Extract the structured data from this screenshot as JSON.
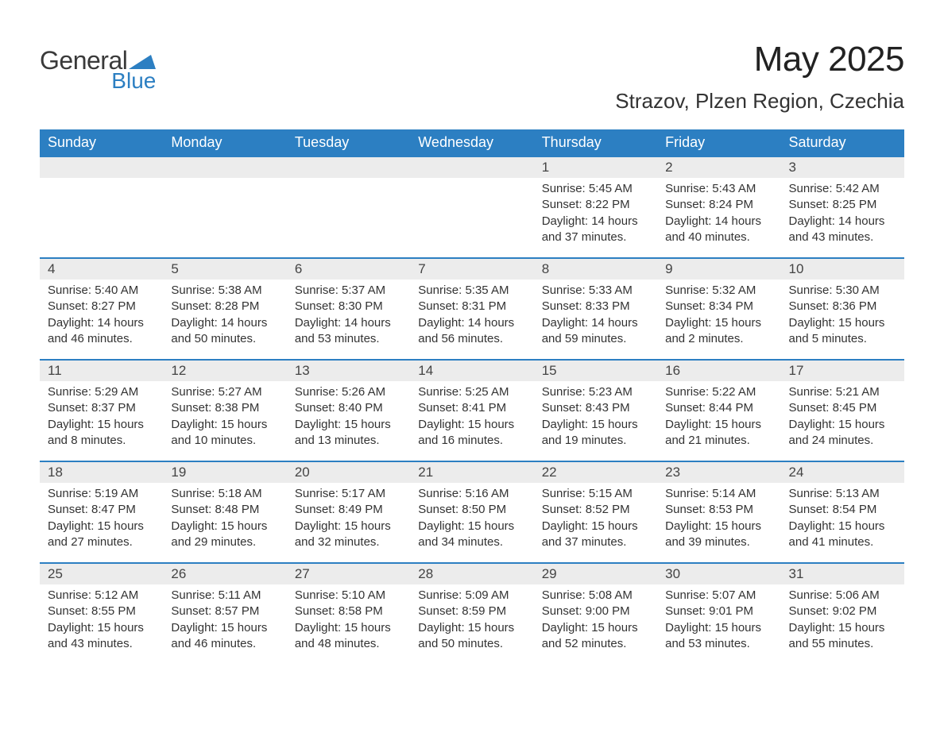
{
  "brand": {
    "word1": "General",
    "word2": "Blue",
    "flag_color": "#2c7fc2",
    "text_color": "#3a3a3a"
  },
  "header": {
    "title": "May 2025",
    "location": "Strazov, Plzen Region, Czechia"
  },
  "calendar": {
    "type": "table",
    "columns": [
      "Sunday",
      "Monday",
      "Tuesday",
      "Wednesday",
      "Thursday",
      "Friday",
      "Saturday"
    ],
    "header_bg": "#2c7fc2",
    "header_text_color": "#ffffff",
    "daybar_bg": "#ececec",
    "daybar_border_color": "#2c7fc2",
    "body_text_color": "#333333",
    "font_size_header": 18,
    "font_size_daynum": 17,
    "font_size_body": 15,
    "leading_blanks": 4,
    "days": [
      {
        "n": "1",
        "sunrise": "Sunrise: 5:45 AM",
        "sunset": "Sunset: 8:22 PM",
        "daylight": "Daylight: 14 hours and 37 minutes."
      },
      {
        "n": "2",
        "sunrise": "Sunrise: 5:43 AM",
        "sunset": "Sunset: 8:24 PM",
        "daylight": "Daylight: 14 hours and 40 minutes."
      },
      {
        "n": "3",
        "sunrise": "Sunrise: 5:42 AM",
        "sunset": "Sunset: 8:25 PM",
        "daylight": "Daylight: 14 hours and 43 minutes."
      },
      {
        "n": "4",
        "sunrise": "Sunrise: 5:40 AM",
        "sunset": "Sunset: 8:27 PM",
        "daylight": "Daylight: 14 hours and 46 minutes."
      },
      {
        "n": "5",
        "sunrise": "Sunrise: 5:38 AM",
        "sunset": "Sunset: 8:28 PM",
        "daylight": "Daylight: 14 hours and 50 minutes."
      },
      {
        "n": "6",
        "sunrise": "Sunrise: 5:37 AM",
        "sunset": "Sunset: 8:30 PM",
        "daylight": "Daylight: 14 hours and 53 minutes."
      },
      {
        "n": "7",
        "sunrise": "Sunrise: 5:35 AM",
        "sunset": "Sunset: 8:31 PM",
        "daylight": "Daylight: 14 hours and 56 minutes."
      },
      {
        "n": "8",
        "sunrise": "Sunrise: 5:33 AM",
        "sunset": "Sunset: 8:33 PM",
        "daylight": "Daylight: 14 hours and 59 minutes."
      },
      {
        "n": "9",
        "sunrise": "Sunrise: 5:32 AM",
        "sunset": "Sunset: 8:34 PM",
        "daylight": "Daylight: 15 hours and 2 minutes."
      },
      {
        "n": "10",
        "sunrise": "Sunrise: 5:30 AM",
        "sunset": "Sunset: 8:36 PM",
        "daylight": "Daylight: 15 hours and 5 minutes."
      },
      {
        "n": "11",
        "sunrise": "Sunrise: 5:29 AM",
        "sunset": "Sunset: 8:37 PM",
        "daylight": "Daylight: 15 hours and 8 minutes."
      },
      {
        "n": "12",
        "sunrise": "Sunrise: 5:27 AM",
        "sunset": "Sunset: 8:38 PM",
        "daylight": "Daylight: 15 hours and 10 minutes."
      },
      {
        "n": "13",
        "sunrise": "Sunrise: 5:26 AM",
        "sunset": "Sunset: 8:40 PM",
        "daylight": "Daylight: 15 hours and 13 minutes."
      },
      {
        "n": "14",
        "sunrise": "Sunrise: 5:25 AM",
        "sunset": "Sunset: 8:41 PM",
        "daylight": "Daylight: 15 hours and 16 minutes."
      },
      {
        "n": "15",
        "sunrise": "Sunrise: 5:23 AM",
        "sunset": "Sunset: 8:43 PM",
        "daylight": "Daylight: 15 hours and 19 minutes."
      },
      {
        "n": "16",
        "sunrise": "Sunrise: 5:22 AM",
        "sunset": "Sunset: 8:44 PM",
        "daylight": "Daylight: 15 hours and 21 minutes."
      },
      {
        "n": "17",
        "sunrise": "Sunrise: 5:21 AM",
        "sunset": "Sunset: 8:45 PM",
        "daylight": "Daylight: 15 hours and 24 minutes."
      },
      {
        "n": "18",
        "sunrise": "Sunrise: 5:19 AM",
        "sunset": "Sunset: 8:47 PM",
        "daylight": "Daylight: 15 hours and 27 minutes."
      },
      {
        "n": "19",
        "sunrise": "Sunrise: 5:18 AM",
        "sunset": "Sunset: 8:48 PM",
        "daylight": "Daylight: 15 hours and 29 minutes."
      },
      {
        "n": "20",
        "sunrise": "Sunrise: 5:17 AM",
        "sunset": "Sunset: 8:49 PM",
        "daylight": "Daylight: 15 hours and 32 minutes."
      },
      {
        "n": "21",
        "sunrise": "Sunrise: 5:16 AM",
        "sunset": "Sunset: 8:50 PM",
        "daylight": "Daylight: 15 hours and 34 minutes."
      },
      {
        "n": "22",
        "sunrise": "Sunrise: 5:15 AM",
        "sunset": "Sunset: 8:52 PM",
        "daylight": "Daylight: 15 hours and 37 minutes."
      },
      {
        "n": "23",
        "sunrise": "Sunrise: 5:14 AM",
        "sunset": "Sunset: 8:53 PM",
        "daylight": "Daylight: 15 hours and 39 minutes."
      },
      {
        "n": "24",
        "sunrise": "Sunrise: 5:13 AM",
        "sunset": "Sunset: 8:54 PM",
        "daylight": "Daylight: 15 hours and 41 minutes."
      },
      {
        "n": "25",
        "sunrise": "Sunrise: 5:12 AM",
        "sunset": "Sunset: 8:55 PM",
        "daylight": "Daylight: 15 hours and 43 minutes."
      },
      {
        "n": "26",
        "sunrise": "Sunrise: 5:11 AM",
        "sunset": "Sunset: 8:57 PM",
        "daylight": "Daylight: 15 hours and 46 minutes."
      },
      {
        "n": "27",
        "sunrise": "Sunrise: 5:10 AM",
        "sunset": "Sunset: 8:58 PM",
        "daylight": "Daylight: 15 hours and 48 minutes."
      },
      {
        "n": "28",
        "sunrise": "Sunrise: 5:09 AM",
        "sunset": "Sunset: 8:59 PM",
        "daylight": "Daylight: 15 hours and 50 minutes."
      },
      {
        "n": "29",
        "sunrise": "Sunrise: 5:08 AM",
        "sunset": "Sunset: 9:00 PM",
        "daylight": "Daylight: 15 hours and 52 minutes."
      },
      {
        "n": "30",
        "sunrise": "Sunrise: 5:07 AM",
        "sunset": "Sunset: 9:01 PM",
        "daylight": "Daylight: 15 hours and 53 minutes."
      },
      {
        "n": "31",
        "sunrise": "Sunrise: 5:06 AM",
        "sunset": "Sunset: 9:02 PM",
        "daylight": "Daylight: 15 hours and 55 minutes."
      }
    ]
  }
}
